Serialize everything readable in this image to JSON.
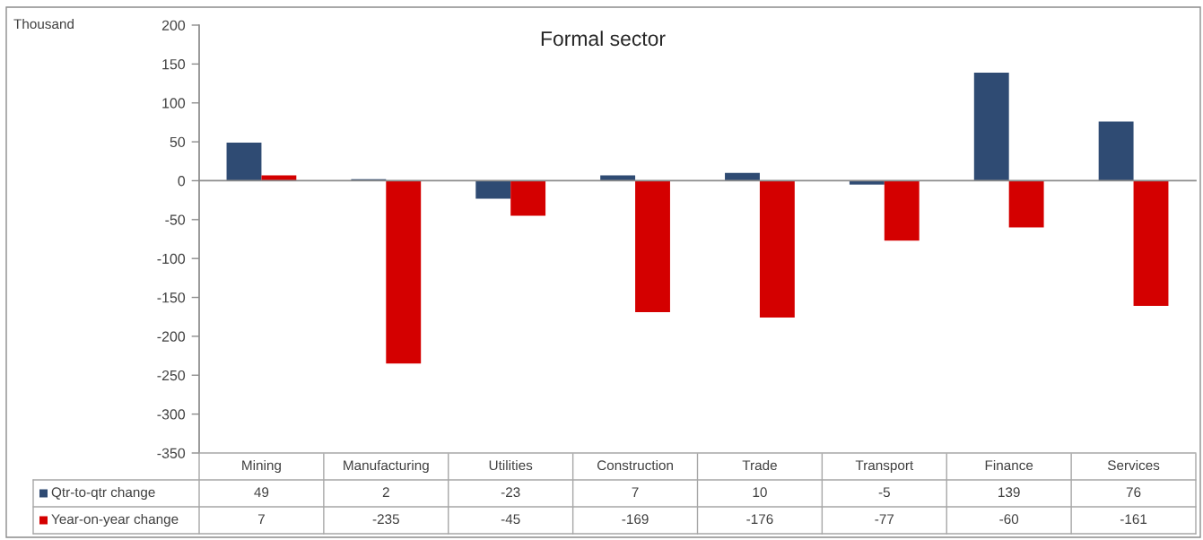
{
  "chart_data": {
    "type": "bar",
    "title": "Formal sector",
    "annotations": [
      "Thousand"
    ],
    "categories": [
      "Mining",
      "Manufacturing",
      "Utilities",
      "Construction",
      "Trade",
      "Transport",
      "Finance",
      "Services"
    ],
    "series": [
      {
        "name": "Qtr-to-qtr change",
        "color": "#2f4b73",
        "values": [
          49,
          2,
          -23,
          7,
          10,
          -5,
          139,
          76
        ]
      },
      {
        "name": "Year-on-year change",
        "color": "#d40000",
        "values": [
          7,
          -235,
          -45,
          -169,
          -176,
          -77,
          -60,
          -161
        ]
      }
    ],
    "ylim": [
      -350,
      200
    ],
    "yticks": [
      -350,
      -300,
      -250,
      -200,
      -150,
      -100,
      -50,
      0,
      50,
      100,
      150,
      200
    ],
    "data_labels": true,
    "legend": "bottom"
  }
}
